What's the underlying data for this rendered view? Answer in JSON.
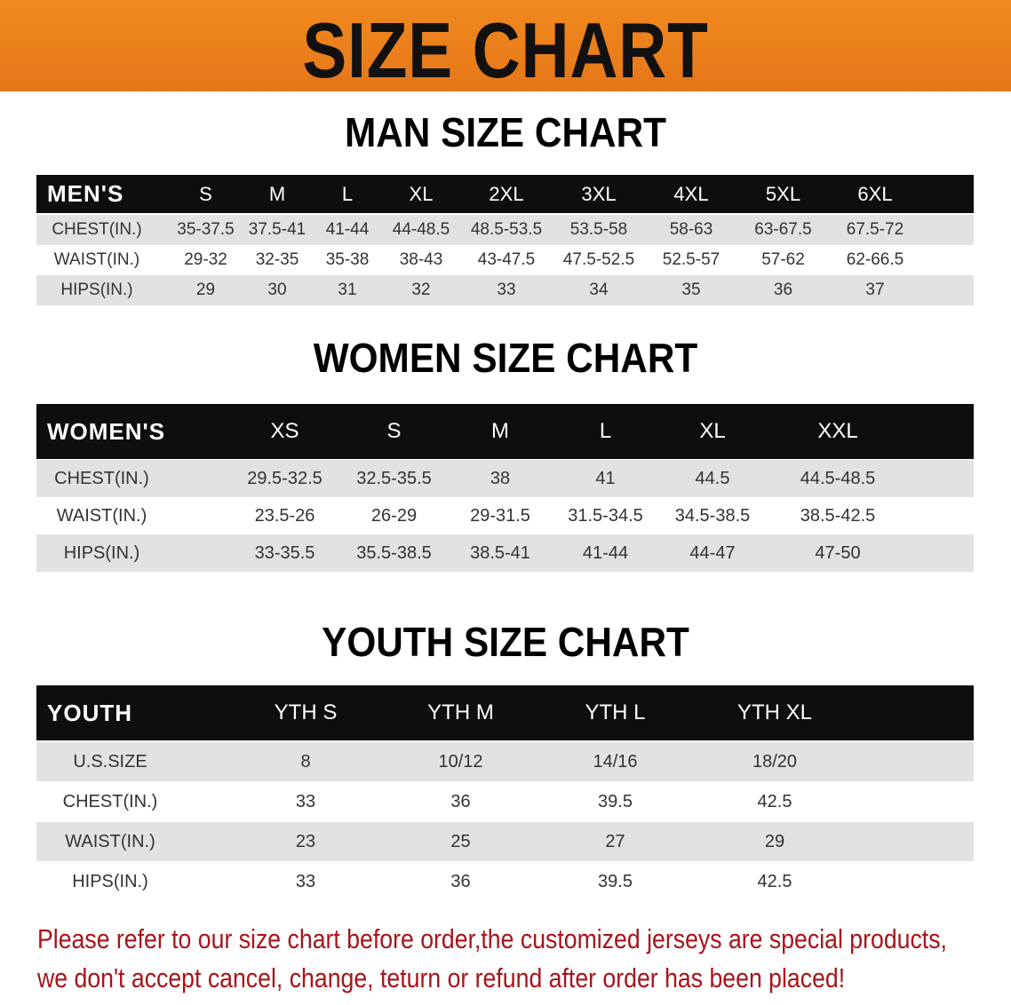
{
  "banner_title": "SIZE CHART",
  "men": {
    "title": "MAN SIZE CHART",
    "header": [
      "MEN'S",
      "S",
      "M",
      "L",
      "XL",
      "2XL",
      "3XL",
      "4XL",
      "5XL",
      "6XL"
    ],
    "rows": [
      [
        "CHEST(IN.)",
        "35-37.5",
        "37.5-41",
        "41-44",
        "44-48.5",
        "48.5-53.5",
        "53.5-58",
        "58-63",
        "63-67.5",
        "67.5-72"
      ],
      [
        "WAIST(IN.)",
        "29-32",
        "32-35",
        "35-38",
        "38-43",
        "43-47.5",
        "47.5-52.5",
        "52.5-57",
        "57-62",
        "62-66.5"
      ],
      [
        "HIPS(IN.)",
        "29",
        "30",
        "31",
        "32",
        "33",
        "34",
        "35",
        "36",
        "37"
      ]
    ]
  },
  "women": {
    "title": "WOMEN SIZE CHART",
    "header": [
      "WOMEN'S",
      "XS",
      "S",
      "M",
      "L",
      "XL",
      "XXL"
    ],
    "rows": [
      [
        "CHEST(IN.)",
        "29.5-32.5",
        "32.5-35.5",
        "38",
        "41",
        "44.5",
        "44.5-48.5"
      ],
      [
        "WAIST(IN.)",
        "23.5-26",
        "26-29",
        "29-31.5",
        "31.5-34.5",
        "34.5-38.5",
        "38.5-42.5"
      ],
      [
        "HIPS(IN.)",
        "33-35.5",
        "35.5-38.5",
        "38.5-41",
        "41-44",
        "44-47",
        "47-50"
      ]
    ]
  },
  "youth": {
    "title": "YOUTH SIZE CHART",
    "header": [
      "YOUTH",
      "YTH S",
      "YTH M",
      "YTH L",
      "YTH XL"
    ],
    "rows": [
      [
        "U.S.SIZE",
        "8",
        "10/12",
        "14/16",
        "18/20"
      ],
      [
        "CHEST(IN.)",
        "33",
        "36",
        "39.5",
        "42.5"
      ],
      [
        "WAIST(IN.)",
        "23",
        "25",
        "27",
        "29"
      ],
      [
        "HIPS(IN.)",
        "33",
        "36",
        "39.5",
        "42.5"
      ]
    ]
  },
  "notice": [
    "Please refer to our size chart before order,the customized jerseys are special products,",
    "we don't accept cancel, change, teturn or refund after order has been placed!"
  ],
  "colors": {
    "banner": "#e87a1c",
    "header_row": "#0e0e0e",
    "stripe": "#e2e2e2",
    "notice": "#a8141a"
  }
}
